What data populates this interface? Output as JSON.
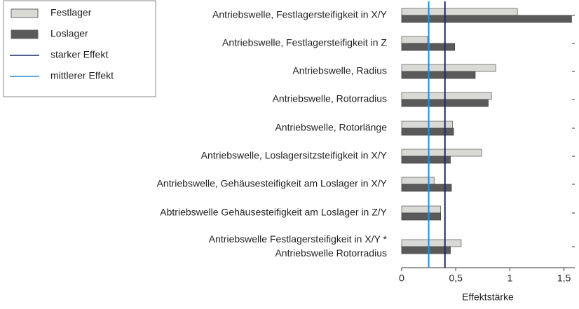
{
  "chart_data": {
    "type": "barh",
    "categories": [
      "Antriebswelle, Festlagersteifigkeit in X/Y",
      "Antriebswelle, Festlagersteifigkeit in Z",
      "Antriebswelle, Radius",
      "Antriebswelle, Rotorradius",
      "Antriebswelle, Rotorlänge",
      "Antriebswelle, Loslagersitzsteifigkeit in X/Y",
      "Antriebswelle, Gehäusesteifigkeit am Loslager in X/Y",
      "Abtriebswelle Gehäusesteifigkeit am Loslager in Z/Y",
      [
        "Antriebswelle Festlagersteifigkeit in X/Y *",
        "Antriebswelle Rotorradius"
      ]
    ],
    "series": [
      {
        "name": "Festlager",
        "color": "#d9d9d6",
        "values": [
          1.07,
          0.24,
          0.87,
          0.83,
          0.47,
          0.74,
          0.3,
          0.36,
          0.55
        ]
      },
      {
        "name": "Loslager",
        "color": "#5a5a5a",
        "values": [
          1.57,
          0.49,
          0.68,
          0.8,
          0.48,
          0.45,
          0.46,
          0.36,
          0.45
        ]
      }
    ],
    "reference_lines": [
      {
        "name": "starker Effekt",
        "value": 0.4,
        "color": "#1b2a6b"
      },
      {
        "name": "mittlerer Effekt",
        "value": 0.25,
        "color": "#2b8ccc"
      }
    ],
    "xlabel": "Effektstärke",
    "xlim": [
      0,
      1.6
    ],
    "xticks": [
      0,
      {
        "value": 0.5,
        "label": "0,5"
      },
      1,
      {
        "value": 1.5,
        "label": "1,5"
      }
    ],
    "legend": "top-left"
  }
}
